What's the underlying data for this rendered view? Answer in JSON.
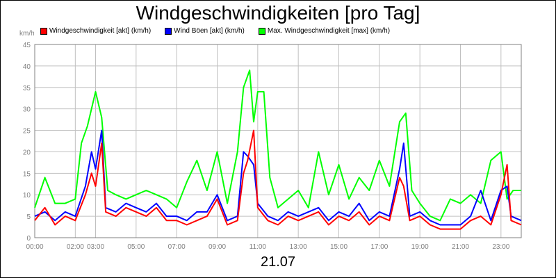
{
  "chart_data": {
    "type": "line",
    "title": "Windgeschwindigkeiten [pro Tag]",
    "ylabel": "km/h",
    "xlabel": "21.07",
    "ylim": [
      0,
      45
    ],
    "yticks": [
      0,
      5,
      10,
      15,
      20,
      25,
      30,
      35,
      40,
      45
    ],
    "xlim": [
      0,
      24
    ],
    "xticks": [
      {
        "label": "00:00",
        "hour": 0
      },
      {
        "label": "02:00",
        "hour": 2
      },
      {
        "label": "03:00",
        "hour": 3
      },
      {
        "label": "05:00",
        "hour": 5
      },
      {
        "label": "07:00",
        "hour": 7
      },
      {
        "label": "09:00",
        "hour": 9
      },
      {
        "label": "11:00",
        "hour": 11
      },
      {
        "label": "13:00",
        "hour": 13
      },
      {
        "label": "15:00",
        "hour": 15
      },
      {
        "label": "17:00",
        "hour": 17
      },
      {
        "label": "19:00",
        "hour": 19
      },
      {
        "label": "21:00",
        "hour": 21
      },
      {
        "label": "23:00",
        "hour": 23
      }
    ],
    "grid": true,
    "legend_position": "top",
    "series": [
      {
        "name": "Windgeschwindigkeit [akt] (km/h)",
        "color": "#ff0000",
        "x": [
          0,
          0.5,
          1,
          1.5,
          2,
          2.5,
          2.8,
          3,
          3.3,
          3.5,
          4,
          4.5,
          5,
          5.5,
          6,
          6.5,
          7,
          7.5,
          8,
          8.5,
          9,
          9.5,
          10,
          10.3,
          10.5,
          10.8,
          11,
          11.5,
          12,
          12.5,
          13,
          13.5,
          14,
          14.5,
          15,
          15.5,
          16,
          16.5,
          17,
          17.5,
          18,
          18.2,
          18.5,
          19,
          19.5,
          20,
          20.5,
          21,
          21.5,
          22,
          22.5,
          23,
          23.3,
          23.5,
          24
        ],
        "values": [
          4,
          7,
          3,
          5,
          4,
          10,
          15,
          12,
          22,
          6,
          5,
          7,
          6,
          5,
          7,
          4,
          4,
          3,
          4,
          5,
          9,
          3,
          4,
          15,
          18,
          25,
          7,
          4,
          3,
          5,
          4,
          5,
          6,
          3,
          5,
          4,
          6,
          3,
          5,
          4,
          14,
          12,
          4,
          5,
          3,
          2,
          2,
          2,
          4,
          5,
          3,
          10,
          17,
          4,
          3
        ]
      },
      {
        "name": "Wind Böen [akt] (km/h)",
        "color": "#0000ff",
        "x": [
          0,
          0.5,
          1,
          1.5,
          2,
          2.5,
          2.8,
          3,
          3.3,
          3.5,
          4,
          4.5,
          5,
          5.5,
          6,
          6.5,
          7,
          7.5,
          8,
          8.5,
          9,
          9.5,
          10,
          10.3,
          10.5,
          10.8,
          11,
          11.5,
          12,
          12.5,
          13,
          13.5,
          14,
          14.5,
          15,
          15.5,
          16,
          16.5,
          17,
          17.5,
          18,
          18.2,
          18.5,
          19,
          19.5,
          20,
          20.5,
          21,
          21.5,
          22,
          22.5,
          23,
          23.3,
          23.5,
          24
        ],
        "values": [
          5,
          6,
          4,
          6,
          5,
          12,
          20,
          16,
          25,
          7,
          6,
          8,
          7,
          6,
          8,
          5,
          5,
          4,
          6,
          6,
          10,
          4,
          5,
          20,
          19,
          17,
          8,
          5,
          4,
          6,
          5,
          6,
          7,
          4,
          6,
          5,
          8,
          4,
          6,
          5,
          16,
          22,
          5,
          6,
          4,
          3,
          3,
          3,
          5,
          11,
          4,
          11,
          12,
          5,
          4
        ]
      },
      {
        "name": "Max. Windgeschwindigkeit [max] (km/h)",
        "color": "#00ff00",
        "x": [
          0,
          0.5,
          1,
          1.5,
          2,
          2.3,
          2.6,
          3,
          3.3,
          3.6,
          4,
          4.5,
          5,
          5.5,
          6,
          6.5,
          7,
          7.5,
          8,
          8.5,
          9,
          9.5,
          10,
          10.3,
          10.6,
          10.8,
          11,
          11.3,
          11.6,
          12,
          12.5,
          13,
          13.5,
          14,
          14.5,
          15,
          15.5,
          16,
          16.5,
          17,
          17.5,
          18,
          18.3,
          18.6,
          19,
          19.5,
          20,
          20.5,
          21,
          21.5,
          22,
          22.5,
          23,
          23.3,
          23.6,
          24
        ],
        "values": [
          7,
          14,
          8,
          8,
          9,
          22,
          26,
          34,
          28,
          11,
          10,
          9,
          10,
          11,
          10,
          9,
          7,
          13,
          18,
          11,
          20,
          8,
          20,
          35,
          39,
          27,
          34,
          34,
          14,
          7,
          9,
          11,
          7,
          20,
          10,
          17,
          9,
          14,
          11,
          18,
          12,
          27,
          29,
          11,
          8,
          5,
          4,
          9,
          8,
          10,
          8,
          18,
          20,
          9,
          11,
          11
        ]
      }
    ]
  }
}
